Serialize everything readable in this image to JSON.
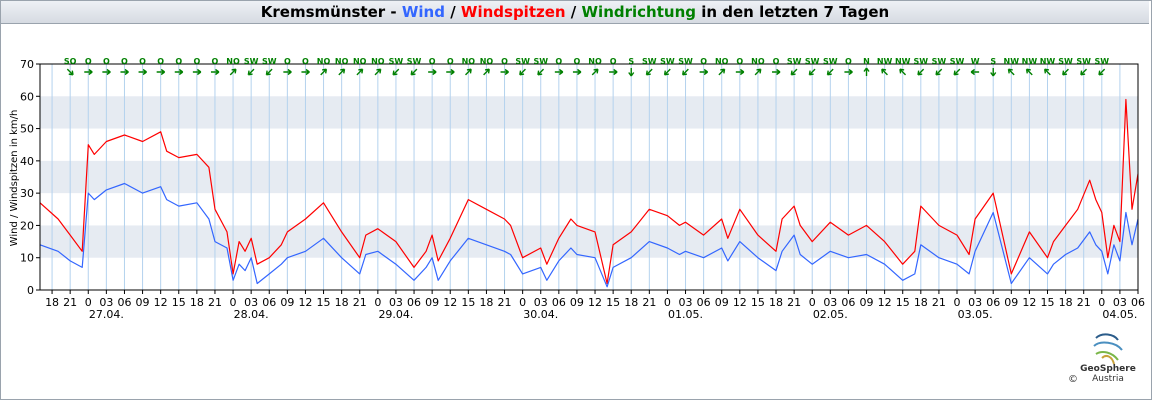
{
  "title": {
    "station": "Kremsmünster",
    "sep1": " - ",
    "wind": "Wind",
    "sep2": " / ",
    "gust": "Windspitzen",
    "sep3": " / ",
    "direction": "Windrichtung",
    "suffix": " in den letzten 7 Tagen"
  },
  "colors": {
    "wind": "#3366ff",
    "gust": "#ff0000",
    "direction": "#008000",
    "title_text": "#000000",
    "band": "#e6ebf2",
    "grid": "#b4d2ee"
  },
  "logo": {
    "name": "GeoSphere",
    "sub": "Austria",
    "copyright": "©"
  },
  "chart_data": {
    "type": "line",
    "ylabel": "Wind / Windspitzen in km/h",
    "ylim": [
      0,
      70
    ],
    "yticks": [
      0,
      10,
      20,
      30,
      40,
      50,
      60,
      70
    ],
    "x_range_hours": [
      -8,
      174
    ],
    "x_origin_label": "27.04. 0 Uhr",
    "hour_ticks": [
      "18",
      "21",
      "0",
      "03",
      "06",
      "09",
      "12",
      "15",
      "18",
      "21",
      "0",
      "03",
      "06",
      "09",
      "12",
      "15",
      "18",
      "21",
      "0",
      "03",
      "06",
      "09",
      "12",
      "15",
      "18",
      "21",
      "0",
      "03",
      "06",
      "09",
      "12",
      "15",
      "18",
      "21",
      "0",
      "03",
      "06",
      "09",
      "12",
      "15",
      "18",
      "21",
      "0",
      "03",
      "06",
      "09",
      "12",
      "15",
      "18",
      "21",
      "0",
      "03",
      "06",
      "09",
      "12",
      "15",
      "18",
      "21",
      "0",
      "03",
      "06"
    ],
    "date_labels": [
      "27.04.",
      "28.04.",
      "29.04.",
      "30.04.",
      "01.05.",
      "02.05.",
      "03.05.",
      "04.05."
    ],
    "direction_labels": [
      "SO",
      "O",
      "O",
      "O",
      "O",
      "O",
      "O",
      "O",
      "O",
      "NO",
      "SW",
      "SW",
      "O",
      "O",
      "NO",
      "NO",
      "NO",
      "NO",
      "SW",
      "SW",
      "O",
      "O",
      "NO",
      "NO",
      "O",
      "SW",
      "SW",
      "O",
      "O",
      "NO",
      "O",
      "S",
      "SW",
      "SW",
      "SW",
      "O",
      "NO",
      "O",
      "NO",
      "O",
      "SW",
      "SW",
      "SW",
      "O",
      "N",
      "NW",
      "NW",
      "SW",
      "SW",
      "SW",
      "W",
      "S",
      "NW",
      "NW",
      "NW",
      "SW",
      "SW",
      "SW"
    ],
    "series": [
      {
        "name": "Windspitzen",
        "color": "#ff0000",
        "x": [
          -8,
          -5,
          -3,
          -1,
          0,
          1,
          3,
          6,
          9,
          12,
          13,
          15,
          18,
          20,
          21,
          23,
          24,
          25,
          26,
          27,
          28,
          30,
          32,
          33,
          36,
          39,
          42,
          45,
          46,
          48,
          51,
          54,
          56,
          57,
          58,
          60,
          63,
          66,
          69,
          70,
          72,
          75,
          76,
          78,
          80,
          81,
          84,
          86,
          87,
          90,
          93,
          96,
          98,
          99,
          102,
          105,
          106,
          108,
          111,
          114,
          115,
          117,
          118,
          120,
          123,
          126,
          129,
          132,
          135,
          137,
          138,
          141,
          144,
          146,
          147,
          150,
          153,
          156,
          159,
          160,
          162,
          164,
          166,
          167,
          168,
          169,
          170,
          171,
          172,
          173,
          174
        ],
        "values": [
          27,
          22,
          17,
          12,
          45,
          42,
          46,
          48,
          46,
          49,
          43,
          41,
          42,
          38,
          25,
          18,
          5,
          15,
          12,
          16,
          8,
          10,
          14,
          18,
          22,
          27,
          18,
          10,
          17,
          19,
          15,
          7,
          12,
          17,
          9,
          16,
          28,
          25,
          22,
          20,
          10,
          13,
          8,
          16,
          22,
          20,
          18,
          2,
          14,
          18,
          25,
          23,
          20,
          21,
          17,
          22,
          16,
          25,
          17,
          12,
          22,
          26,
          20,
          15,
          21,
          17,
          20,
          15,
          8,
          12,
          26,
          20,
          17,
          11,
          22,
          30,
          5,
          18,
          10,
          15,
          20,
          25,
          34,
          28,
          24,
          10,
          20,
          15,
          59,
          25,
          36
        ]
      },
      {
        "name": "Wind",
        "color": "#3366ff",
        "x": [
          -8,
          -5,
          -3,
          -1,
          0,
          1,
          3,
          6,
          9,
          12,
          13,
          15,
          18,
          20,
          21,
          23,
          24,
          25,
          26,
          27,
          28,
          30,
          32,
          33,
          36,
          39,
          42,
          45,
          46,
          48,
          51,
          54,
          56,
          57,
          58,
          60,
          63,
          66,
          69,
          70,
          72,
          75,
          76,
          78,
          80,
          81,
          84,
          86,
          87,
          90,
          93,
          96,
          98,
          99,
          102,
          105,
          106,
          108,
          111,
          114,
          115,
          117,
          118,
          120,
          123,
          126,
          129,
          132,
          135,
          137,
          138,
          141,
          144,
          146,
          147,
          150,
          153,
          156,
          159,
          160,
          162,
          164,
          166,
          167,
          168,
          169,
          170,
          171,
          172,
          173,
          174
        ],
        "values": [
          14,
          12,
          9,
          7,
          30,
          28,
          31,
          33,
          30,
          32,
          28,
          26,
          27,
          22,
          15,
          13,
          3,
          8,
          6,
          10,
          2,
          5,
          8,
          10,
          12,
          16,
          10,
          5,
          11,
          12,
          8,
          3,
          7,
          10,
          3,
          9,
          16,
          14,
          12,
          11,
          5,
          7,
          3,
          9,
          13,
          11,
          10,
          1,
          7,
          10,
          15,
          13,
          11,
          12,
          10,
          13,
          9,
          15,
          10,
          6,
          12,
          17,
          11,
          8,
          12,
          10,
          11,
          8,
          3,
          5,
          14,
          10,
          8,
          5,
          12,
          24,
          2,
          10,
          5,
          8,
          11,
          13,
          18,
          14,
          12,
          5,
          14,
          9,
          24,
          14,
          22
        ]
      }
    ]
  }
}
